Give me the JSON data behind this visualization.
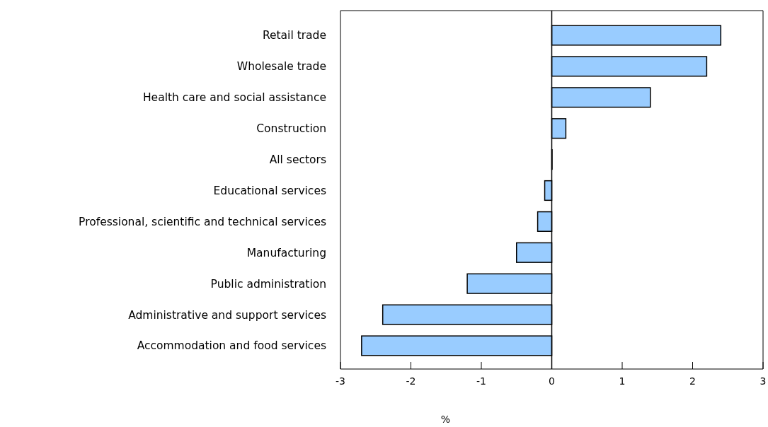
{
  "chart_data": {
    "type": "bar",
    "orientation": "horizontal",
    "xlabel": "%",
    "categories": [
      "Retail trade",
      "Wholesale trade",
      "Health care and social assistance",
      "Construction",
      "All sectors",
      "Educational services",
      "Professional, scientific and technical services",
      "Manufacturing",
      "Public administration",
      "Administrative and support services",
      "Accommodation and food services"
    ],
    "values": [
      2.4,
      2.2,
      1.4,
      0.2,
      0,
      -0.1,
      -0.2,
      -0.5,
      -1.2,
      -2.4,
      -2.7
    ],
    "color": "#99ccff",
    "xlim": [
      -3,
      3
    ],
    "xticks": [
      -3,
      -2,
      -1,
      0,
      1,
      2,
      3
    ],
    "ref_lines": [
      {
        "axis": "x",
        "value": 0,
        "color": "#000000"
      }
    ]
  }
}
